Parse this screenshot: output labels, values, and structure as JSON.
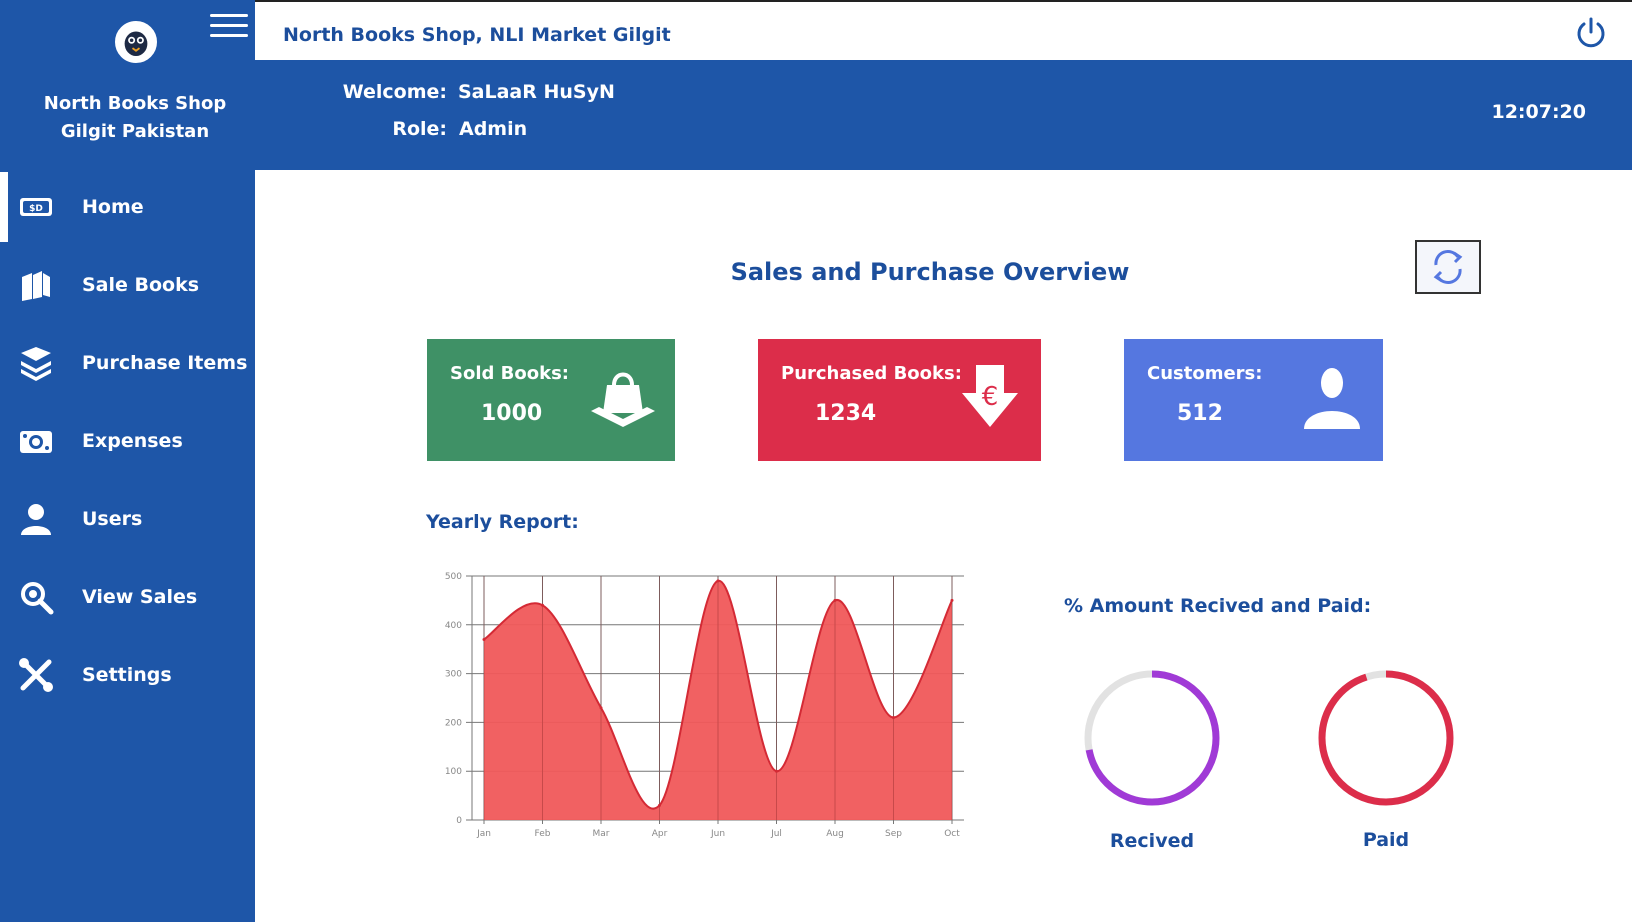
{
  "brand": {
    "name_line1": "North Books Shop",
    "name_line2": "Gilgit Pakistan"
  },
  "topbar": {
    "shop_title": "North Books Shop, NLI Market Gilgit"
  },
  "header": {
    "welcome_label": "Welcome:",
    "welcome_value": "SaLaaR HuSyN",
    "role_label": "Role:",
    "role_value": "Admin",
    "clock": "12:07:20"
  },
  "nav": {
    "items": [
      {
        "label": "Home",
        "icon": "home-money-icon",
        "active": true
      },
      {
        "label": "Sale Books",
        "icon": "books-icon"
      },
      {
        "label": "Purchase Items",
        "icon": "book-stack-icon"
      },
      {
        "label": "Expenses",
        "icon": "cash-icon"
      },
      {
        "label": "Users",
        "icon": "users-icon"
      },
      {
        "label": "View Sales",
        "icon": "search-icon"
      },
      {
        "label": "Settings",
        "icon": "tools-icon"
      }
    ]
  },
  "main": {
    "title": "Sales and Purchase Overview",
    "cards": {
      "sold": {
        "label": "Sold Books:",
        "value": "1000",
        "color": "#3f9166"
      },
      "purchased": {
        "label": "Purchased Books:",
        "value": "1234",
        "color": "#dc2d4a"
      },
      "customers": {
        "label": "Customers:",
        "value": "512",
        "color": "#5577e0"
      }
    },
    "yearly_title": "Yearly Report:",
    "pct_title": "% Amount Recived and Paid:",
    "received_label": "Recived",
    "paid_label": "Paid",
    "received_fraction": 0.72,
    "paid_fraction": 0.95
  },
  "chart_data": {
    "type": "area",
    "title": "Yearly Report:",
    "categories": [
      "Jan",
      "Feb",
      "Mar",
      "Apr",
      "Jun",
      "Jul",
      "Aug",
      "Sep",
      "Oct"
    ],
    "values": [
      370,
      440,
      230,
      30,
      490,
      100,
      450,
      210,
      450
    ],
    "yticks": [
      0,
      100,
      200,
      300,
      400,
      500
    ],
    "ylim": [
      0,
      500
    ],
    "color": "#f0585a",
    "line_color": "#d42a35"
  }
}
